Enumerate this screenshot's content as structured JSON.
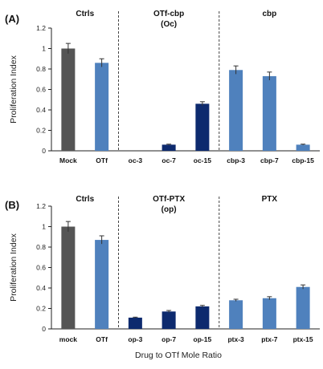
{
  "xlabel": "Drug to OTf Mole Ratio",
  "colors": {
    "control": "#555555",
    "otf": "#4f81bd",
    "conjugate": "#0d2a6e",
    "free": "#4f81bd",
    "divider": "#444444"
  },
  "chart_data": [
    {
      "type": "bar",
      "panel_label": "(A)",
      "ylabel": "Proliferation Index",
      "ylim": [
        0,
        1.2
      ],
      "yticks": [
        "0",
        "0.2",
        "0.4",
        "0.6",
        "0.8",
        "1",
        "1.2"
      ],
      "groups": [
        {
          "label": "Ctrls",
          "label2": ""
        },
        {
          "label": "OTf-cbp",
          "label2": "(Oc)"
        },
        {
          "label": "cbp",
          "label2": ""
        }
      ],
      "categories": [
        "Mock",
        "OTf",
        "oc-3",
        "oc-7",
        "oc-15",
        "cbp-3",
        "cbp-7",
        "cbp-15"
      ],
      "values": [
        1.0,
        0.86,
        0.0,
        0.06,
        0.46,
        0.79,
        0.73,
        0.06
      ],
      "errors": [
        0.05,
        0.04,
        0.0,
        0.005,
        0.02,
        0.04,
        0.04,
        0.005
      ],
      "kinds": [
        "control",
        "otf",
        "conjugate",
        "conjugate",
        "conjugate",
        "free",
        "free",
        "free"
      ],
      "grid": false,
      "legend": "none"
    },
    {
      "type": "bar",
      "panel_label": "(B)",
      "ylabel": "Proliferation Index",
      "ylim": [
        0,
        1.2
      ],
      "yticks": [
        "0",
        "0.2",
        "0.4",
        "0.6",
        "0.8",
        "1",
        "1.2"
      ],
      "groups": [
        {
          "label": "Ctrls",
          "label2": ""
        },
        {
          "label": "OTf-PTX",
          "label2": "(op)"
        },
        {
          "label": "PTX",
          "label2": ""
        }
      ],
      "categories": [
        "mock",
        "OTf",
        "op-3",
        "op-7",
        "op-15",
        "ptx-3",
        "ptx-7",
        "ptx-15"
      ],
      "values": [
        1.0,
        0.87,
        0.11,
        0.17,
        0.22,
        0.28,
        0.3,
        0.41
      ],
      "errors": [
        0.05,
        0.04,
        0.005,
        0.01,
        0.01,
        0.01,
        0.015,
        0.02
      ],
      "kinds": [
        "control",
        "otf",
        "conjugate",
        "conjugate",
        "conjugate",
        "free",
        "free",
        "free"
      ],
      "grid": false,
      "legend": "none"
    }
  ]
}
